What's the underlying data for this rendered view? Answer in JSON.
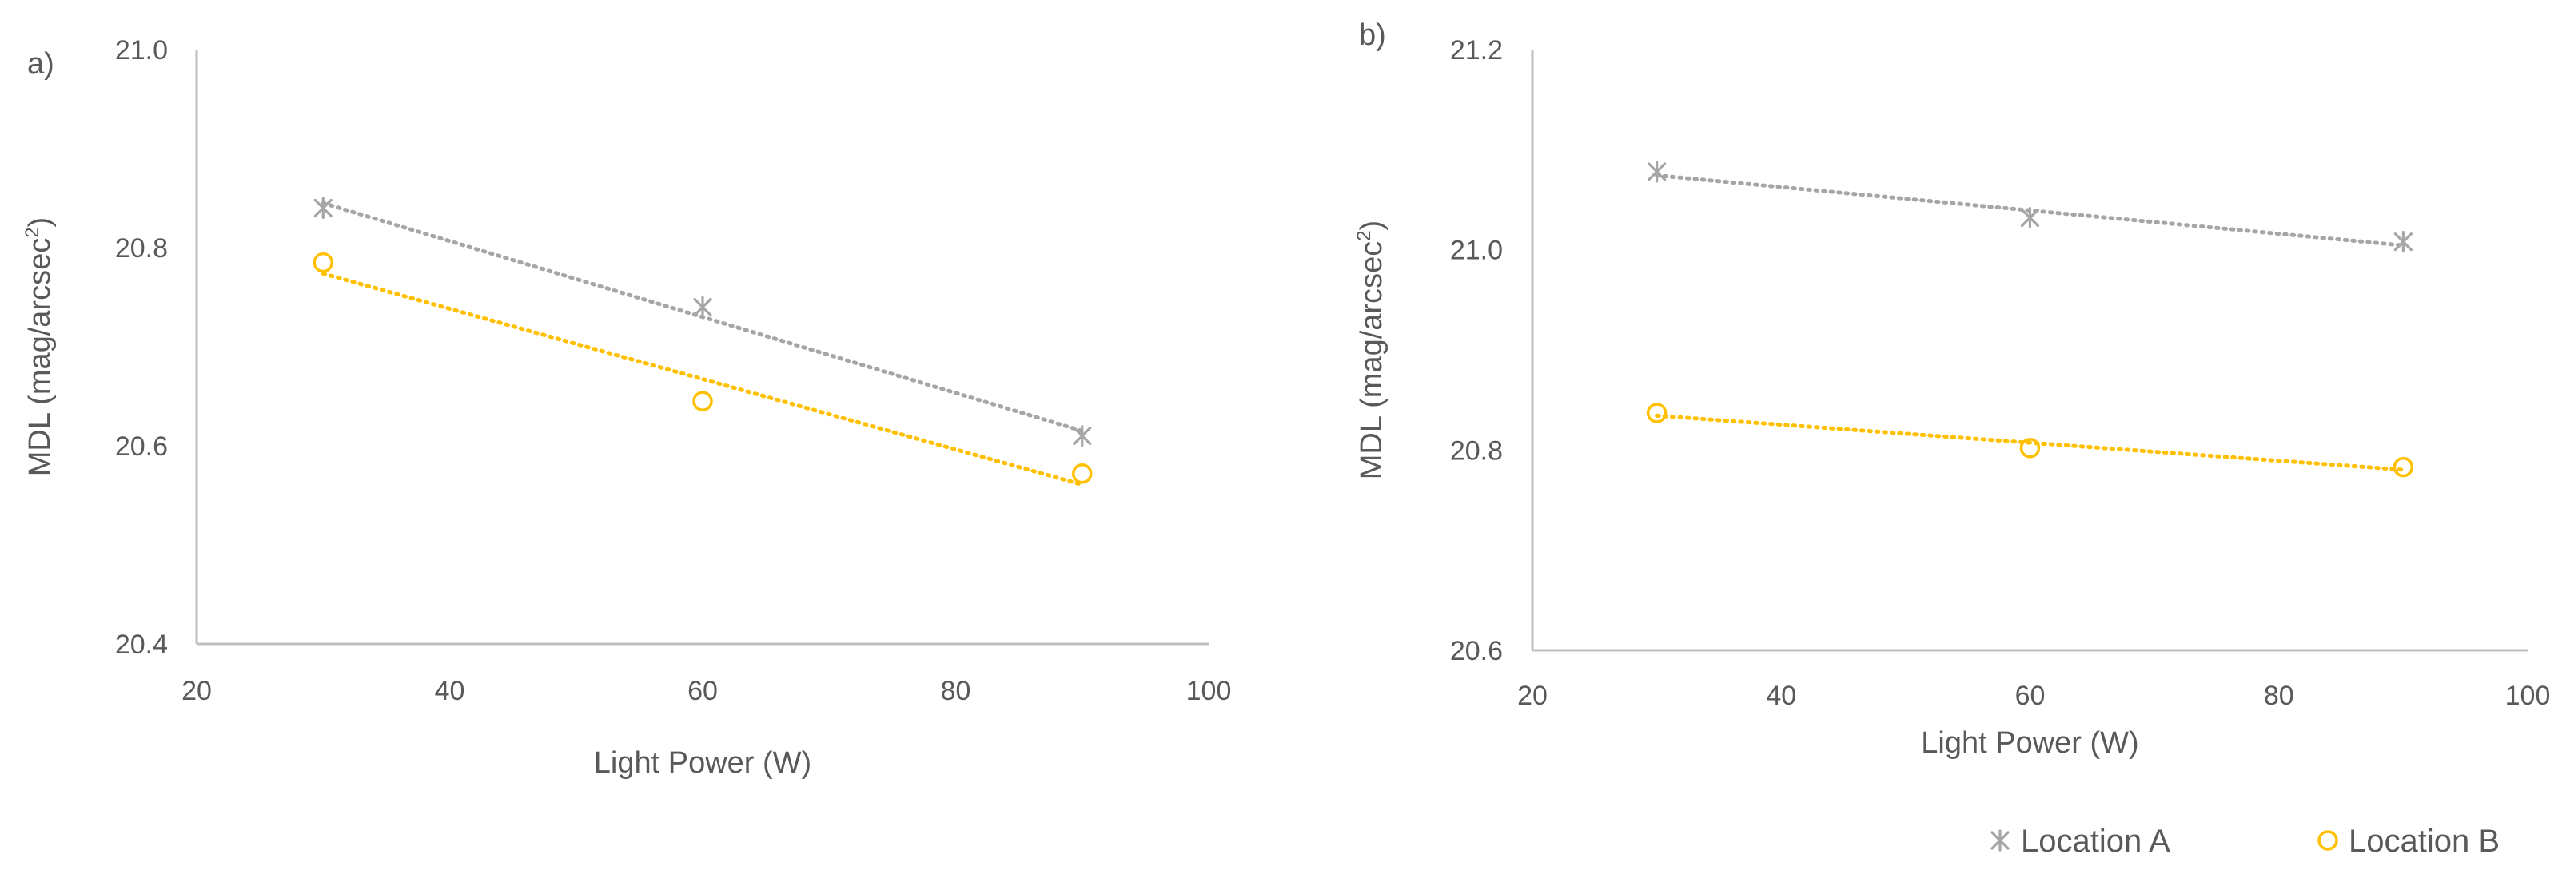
{
  "legend": {
    "items": [
      {
        "label": "Location A",
        "marker": "asterisk",
        "color": "#a6a6a6"
      },
      {
        "label": "Location B",
        "marker": "circle",
        "color": "#ffc000"
      }
    ]
  },
  "chart_data": [
    {
      "type": "scatter",
      "panel_label": "a)",
      "xlabel": "Light Power (W)",
      "ylabel": "MDL (mag/arcsec",
      "ylabel_sup": "2",
      "ylabel_close": ")",
      "xlim": [
        20,
        100
      ],
      "ylim": [
        20.4,
        21.0
      ],
      "xticks": [
        20,
        40,
        60,
        80,
        100
      ],
      "xtick_labels": [
        "20",
        "40",
        "60",
        "80",
        "100"
      ],
      "yticks": [
        20.4,
        20.6,
        20.8,
        21.0
      ],
      "ytick_labels": [
        "20.4",
        "20.6",
        "20.8",
        "21.0"
      ],
      "grid": false,
      "series": [
        {
          "name": "Location A",
          "marker": "asterisk",
          "color": "#a6a6a6",
          "trendline": "linear",
          "x": [
            30,
            60,
            90
          ],
          "y": [
            20.84,
            20.74,
            20.61
          ]
        },
        {
          "name": "Location B",
          "marker": "circle",
          "color": "#ffc000",
          "trendline": "linear",
          "x": [
            30,
            60,
            90
          ],
          "y": [
            20.785,
            20.645,
            20.572
          ]
        }
      ]
    },
    {
      "type": "scatter",
      "panel_label": "b)",
      "xlabel": "Light Power (W)",
      "ylabel": "MDL (mag/arcsec",
      "ylabel_sup": "2",
      "ylabel_close": ")",
      "xlim": [
        20,
        100
      ],
      "ylim": [
        20.6,
        21.2
      ],
      "xticks": [
        20,
        40,
        60,
        80,
        100
      ],
      "xtick_labels": [
        "20",
        "40",
        "60",
        "80",
        "100"
      ],
      "yticks": [
        20.6,
        20.8,
        21.0,
        21.2
      ],
      "ytick_labels": [
        "20.6",
        "20.8",
        "21.0",
        "21.2"
      ],
      "grid": false,
      "series": [
        {
          "name": "Location A",
          "marker": "asterisk",
          "color": "#a6a6a6",
          "trendline": "linear",
          "x": [
            30,
            60,
            90
          ],
          "y": [
            21.078,
            21.032,
            21.008
          ]
        },
        {
          "name": "Location B",
          "marker": "circle",
          "color": "#ffc000",
          "trendline": "linear",
          "x": [
            30,
            60,
            90
          ],
          "y": [
            20.837,
            20.802,
            20.783
          ]
        }
      ]
    }
  ]
}
